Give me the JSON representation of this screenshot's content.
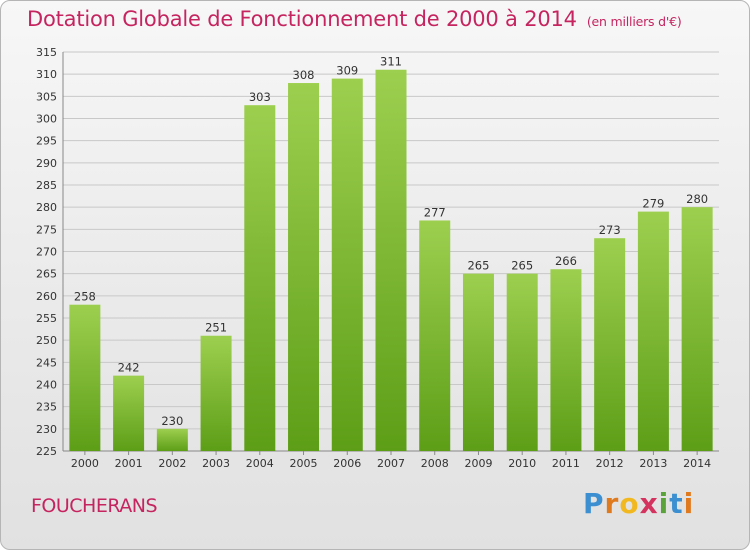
{
  "header": {
    "title": "Dotation Globale de Fonctionnement de 2000 à 2014",
    "unit": "(en milliers d'€)"
  },
  "footer": {
    "commune": "FOUCHERANS",
    "logo": "Proxiti"
  },
  "colors": {
    "title": "#c5245f",
    "bar_top": "#9dcf4f",
    "bar_bottom": "#5d9e17",
    "grid": "#c8c8c8"
  },
  "chart_data": {
    "type": "bar",
    "title": "Dotation Globale de Fonctionnement de 2000 à 2014",
    "subtitle": "(en milliers d'€)",
    "xlabel": "",
    "ylabel": "",
    "categories": [
      "2000",
      "2001",
      "2002",
      "2003",
      "2004",
      "2005",
      "2006",
      "2007",
      "2008",
      "2009",
      "2010",
      "2011",
      "2012",
      "2013",
      "2014"
    ],
    "values": [
      258,
      242,
      230,
      251,
      303,
      308,
      309,
      311,
      277,
      265,
      265,
      266,
      273,
      279,
      280
    ],
    "ylim": [
      225,
      315
    ],
    "yticks": [
      225,
      230,
      235,
      240,
      245,
      250,
      255,
      260,
      265,
      270,
      275,
      280,
      285,
      290,
      295,
      300,
      305,
      310,
      315
    ],
    "grid": true,
    "legend": "none"
  }
}
